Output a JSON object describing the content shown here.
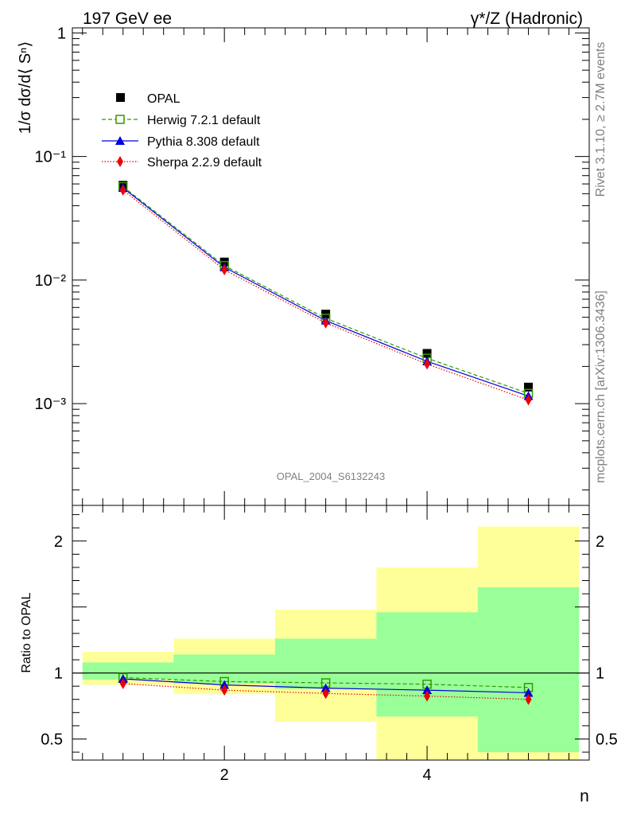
{
  "header": {
    "left": "197 GeV ee",
    "right": "γ*/Z (Hadronic)"
  },
  "side_labels": {
    "rivet": "Rivet 3.1.10, ≥ 2.7M events",
    "mcplots": "mcplots.cern.ch [arXiv:1306.3436]"
  },
  "analysis_label": "OPAL_2004_S6132243",
  "colors": {
    "herwig": "#339900",
    "pythia": "#0000dd",
    "sherpa": "#ee0000",
    "band_inner": "#99ff99",
    "band_outer": "#ffff99"
  },
  "chart_data": [
    {
      "type": "line",
      "panel": "main",
      "ylabel": "1/σ dσ/d⟨ Sⁿ⟩",
      "yscale": "log",
      "ylim": [
        0.00015,
        1.1
      ],
      "xlim": [
        0.5,
        5.6
      ],
      "x": [
        1,
        2,
        3,
        4,
        5
      ],
      "yticks": [
        {
          "value": 1,
          "label": "1"
        },
        {
          "value": 0.1,
          "label": "10⁻¹"
        },
        {
          "value": 0.01,
          "label": "10⁻²"
        },
        {
          "value": 0.001,
          "label": "10⁻³"
        }
      ],
      "legend_position": "top-left",
      "series": [
        {
          "name": "OPAL",
          "key": "opal",
          "values": [
            0.0585,
            0.014,
            0.0053,
            0.00255,
            0.00136
          ]
        },
        {
          "name": "Herwig 7.2.1 default",
          "key": "herwig",
          "values": [
            0.057,
            0.0131,
            0.0049,
            0.00233,
            0.00121
          ]
        },
        {
          "name": "Pythia 8.308 default",
          "key": "pythia",
          "values": [
            0.0558,
            0.0127,
            0.0047,
            0.0022,
            0.00115
          ]
        },
        {
          "name": "Sherpa 2.2.9 default",
          "key": "sherpa",
          "values": [
            0.0535,
            0.0121,
            0.0045,
            0.00209,
            0.00107
          ]
        }
      ]
    },
    {
      "type": "line",
      "panel": "ratio",
      "ylabel": "Ratio to OPAL",
      "xlabel": "n",
      "ylim": [
        0.34,
        2.27
      ],
      "xlim": [
        0.5,
        5.6
      ],
      "yticks": [
        {
          "value": 0.5,
          "label": "0.5"
        },
        {
          "value": 1,
          "label": "1"
        },
        {
          "value": 2,
          "label": "2"
        }
      ],
      "xticks": [
        {
          "value": 2,
          "label": "2"
        },
        {
          "value": 4,
          "label": "4"
        }
      ],
      "bins": [
        [
          0.6,
          1.5
        ],
        [
          1.5,
          2.5
        ],
        [
          2.5,
          3.5
        ],
        [
          3.5,
          4.5
        ],
        [
          4.5,
          5.5
        ]
      ],
      "band_inner": [
        [
          0.95,
          1.08
        ],
        [
          0.92,
          1.14
        ],
        [
          0.88,
          1.26
        ],
        [
          0.67,
          1.46
        ],
        [
          0.4,
          1.65
        ]
      ],
      "band_outer": [
        [
          0.91,
          1.16
        ],
        [
          0.84,
          1.26
        ],
        [
          0.63,
          1.48
        ],
        [
          0.34,
          1.8
        ],
        [
          0.34,
          2.11
        ]
      ],
      "x": [
        1,
        2,
        3,
        4,
        5
      ],
      "series": [
        {
          "name": "Herwig 7.2.1 default",
          "key": "herwig",
          "values": [
            0.965,
            0.935,
            0.925,
            0.915,
            0.89
          ]
        },
        {
          "name": "Pythia 8.308 default",
          "key": "pythia",
          "values": [
            0.955,
            0.91,
            0.885,
            0.87,
            0.85
          ]
        },
        {
          "name": "Sherpa 2.2.9 default",
          "key": "sherpa",
          "values": [
            0.92,
            0.87,
            0.845,
            0.825,
            0.8
          ]
        }
      ]
    }
  ]
}
